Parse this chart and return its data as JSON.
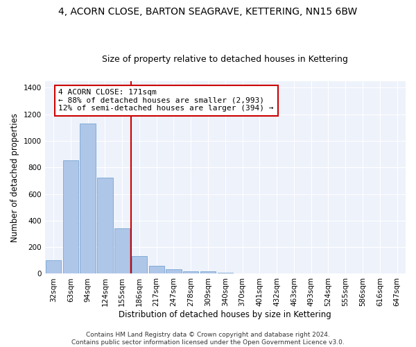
{
  "title1": "4, ACORN CLOSE, BARTON SEAGRAVE, KETTERING, NN15 6BW",
  "title2": "Size of property relative to detached houses in Kettering",
  "xlabel": "Distribution of detached houses by size in Kettering",
  "ylabel": "Number of detached properties",
  "categories": [
    "32sqm",
    "63sqm",
    "94sqm",
    "124sqm",
    "155sqm",
    "186sqm",
    "217sqm",
    "247sqm",
    "278sqm",
    "309sqm",
    "340sqm",
    "370sqm",
    "401sqm",
    "432sqm",
    "463sqm",
    "493sqm",
    "524sqm",
    "555sqm",
    "586sqm",
    "616sqm",
    "647sqm"
  ],
  "values": [
    103,
    855,
    1130,
    725,
    340,
    135,
    60,
    32,
    20,
    17,
    10,
    0,
    0,
    0,
    0,
    0,
    0,
    0,
    0,
    0,
    0
  ],
  "bar_color": "#aec6e8",
  "bar_edge_color": "#6699cc",
  "vline_x": 4.5,
  "vline_color": "#cc0000",
  "annotation_line1": "4 ACORN CLOSE: 171sqm",
  "annotation_line2": "← 88% of detached houses are smaller (2,993)",
  "annotation_line3": "12% of semi-detached houses are larger (394) →",
  "annotation_box_color": "white",
  "annotation_border_color": "#cc0000",
  "ylim": [
    0,
    1450
  ],
  "yticks": [
    0,
    200,
    400,
    600,
    800,
    1000,
    1200,
    1400
  ],
  "bg_color": "#eef2fb",
  "footer1": "Contains HM Land Registry data © Crown copyright and database right 2024.",
  "footer2": "Contains public sector information licensed under the Open Government Licence v3.0.",
  "title1_fontsize": 10,
  "title2_fontsize": 9,
  "xlabel_fontsize": 8.5,
  "ylabel_fontsize": 8.5,
  "tick_fontsize": 7.5,
  "footer_fontsize": 6.5,
  "annot_fontsize": 8
}
